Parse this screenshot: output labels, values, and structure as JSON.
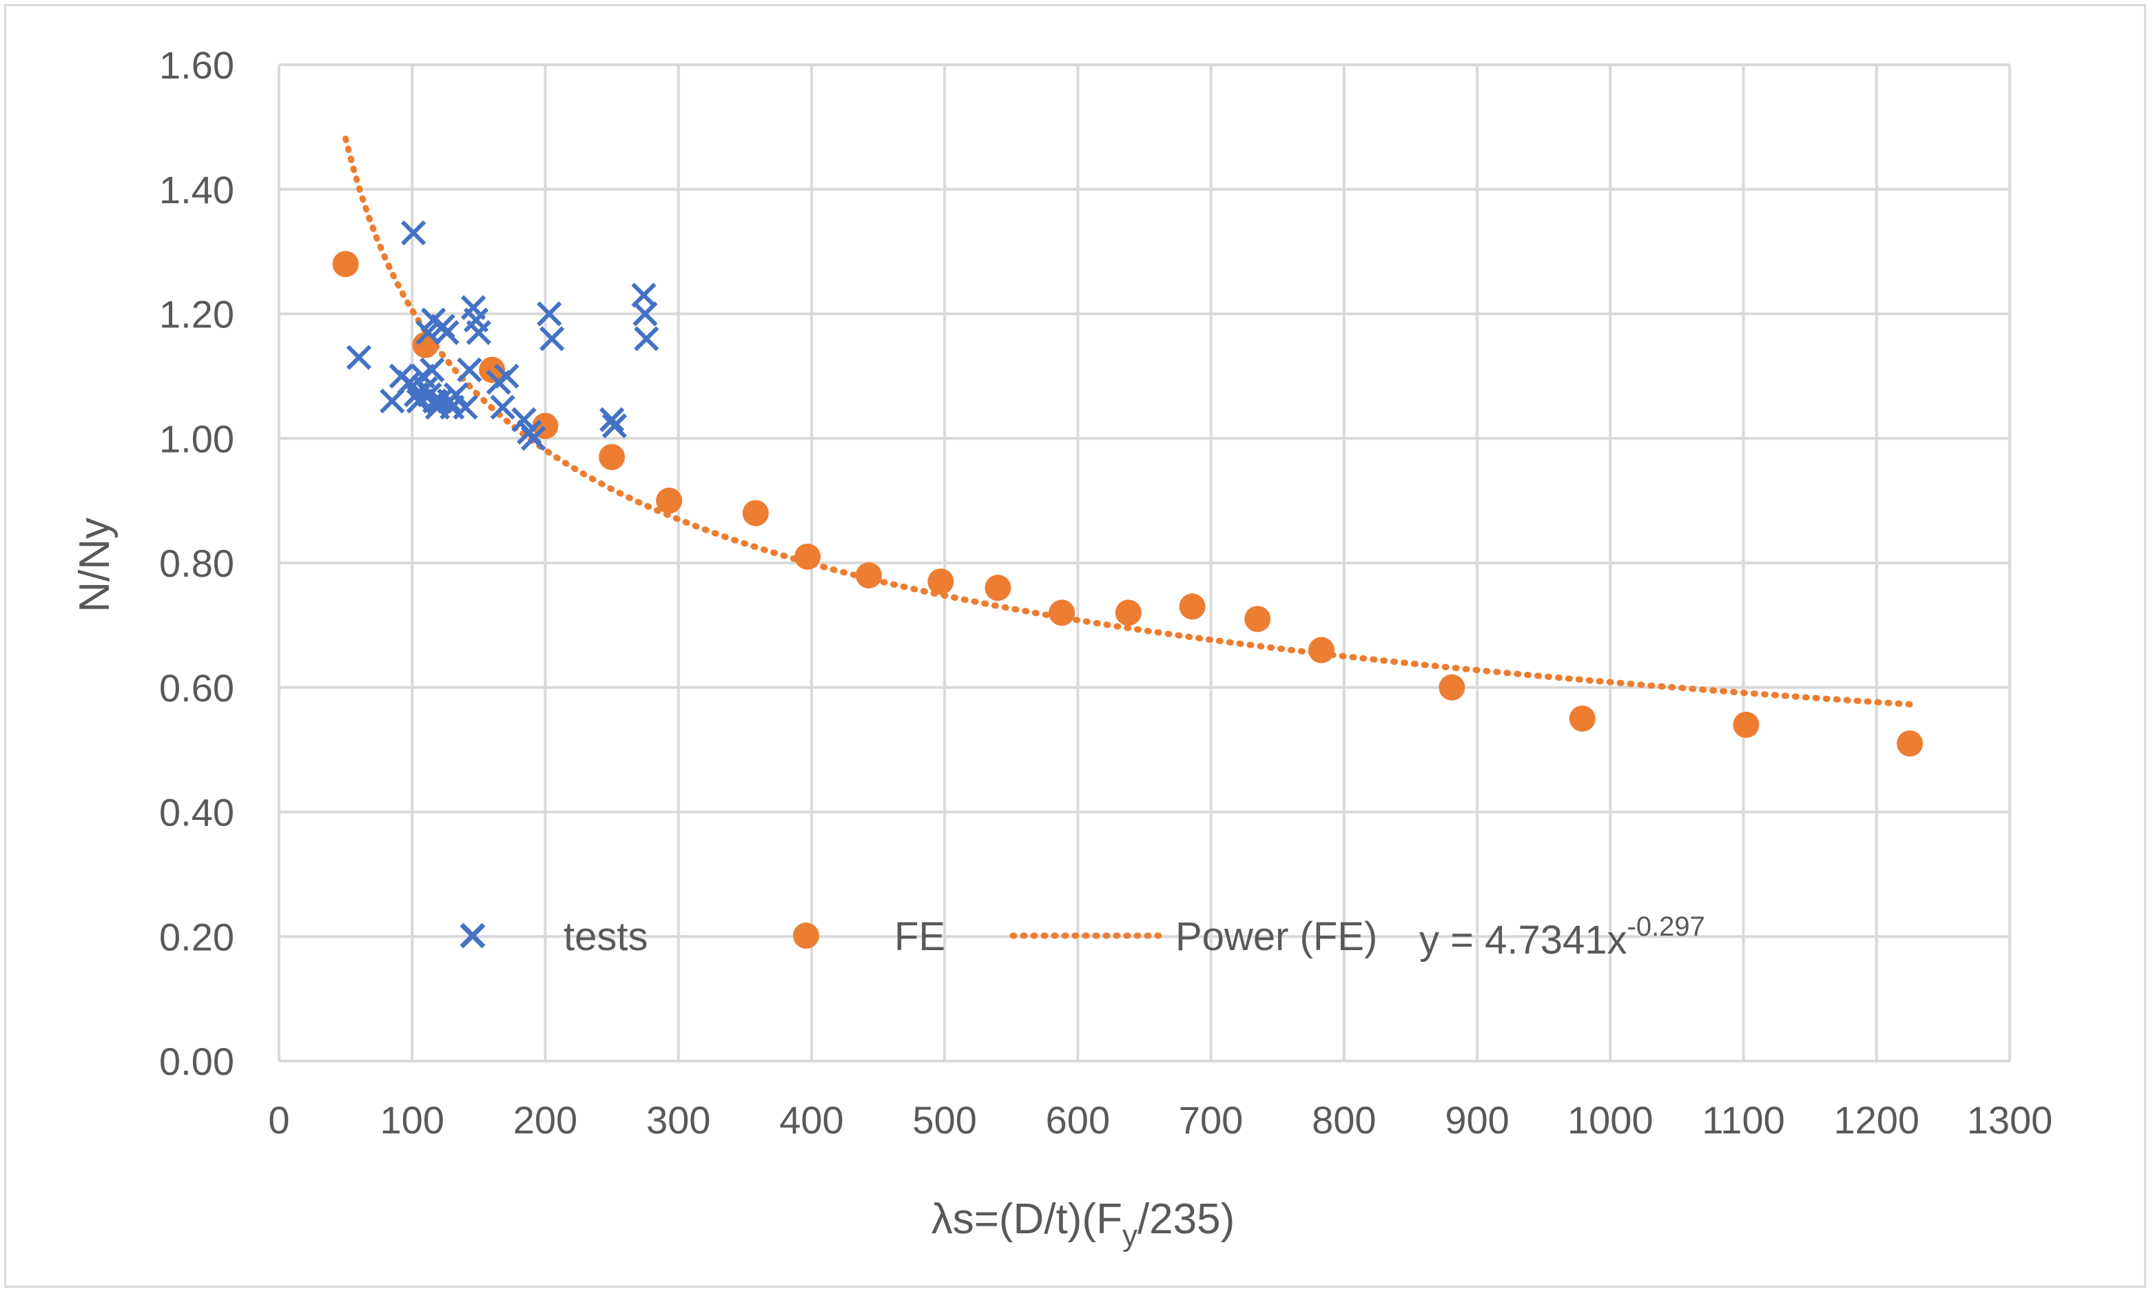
{
  "chart_data": {
    "type": "scatter",
    "title": "",
    "xlabel_parts": {
      "pre": "λs=(D/t)(F",
      "sub": "y",
      "post": "/235)"
    },
    "ylabel": "N/Ny",
    "xlim": [
      0,
      1300
    ],
    "ylim": [
      0,
      1.6
    ],
    "x_ticks": [
      0,
      100,
      200,
      300,
      400,
      500,
      600,
      700,
      800,
      900,
      1000,
      1100,
      1200,
      1300
    ],
    "y_ticks": [
      0,
      0.2,
      0.4,
      0.6,
      0.8,
      1.0,
      1.2,
      1.4,
      1.6
    ],
    "x_tick_labels": [
      "0",
      "100",
      "200",
      "300",
      "400",
      "500",
      "600",
      "700",
      "800",
      "900",
      "1000",
      "1100",
      "1200",
      "1300"
    ],
    "y_tick_labels": [
      "0.00",
      "0.20",
      "0.40",
      "0.60",
      "0.80",
      "1.00",
      "1.20",
      "1.40",
      "1.60"
    ],
    "grid": true,
    "legend_position": "bottom-inside",
    "series": [
      {
        "name": "tests",
        "marker": "x",
        "color": "#4472c4",
        "points": [
          [
            60,
            1.13
          ],
          [
            85,
            1.06
          ],
          [
            92,
            1.1
          ],
          [
            98,
            1.09
          ],
          [
            101,
            1.33
          ],
          [
            103,
            1.07
          ],
          [
            105,
            1.06
          ],
          [
            108,
            1.1
          ],
          [
            110,
            1.08
          ],
          [
            112,
            1.17
          ],
          [
            113,
            1.07
          ],
          [
            115,
            1.11
          ],
          [
            116,
            1.19
          ],
          [
            117,
            1.06
          ],
          [
            119,
            1.05
          ],
          [
            121,
            1.06
          ],
          [
            123,
            1.18
          ],
          [
            126,
            1.17
          ],
          [
            128,
            1.06
          ],
          [
            130,
            1.05
          ],
          [
            133,
            1.07
          ],
          [
            140,
            1.05
          ],
          [
            143,
            1.11
          ],
          [
            146,
            1.21
          ],
          [
            148,
            1.19
          ],
          [
            150,
            1.17
          ],
          [
            165,
            1.09
          ],
          [
            168,
            1.05
          ],
          [
            171,
            1.1
          ],
          [
            184,
            1.03
          ],
          [
            188,
            1.01
          ],
          [
            191,
            1.0
          ],
          [
            203,
            1.2
          ],
          [
            205,
            1.16
          ],
          [
            250,
            1.03
          ],
          [
            252,
            1.02
          ],
          [
            274,
            1.23
          ],
          [
            275,
            1.2
          ],
          [
            276,
            1.16
          ]
        ]
      },
      {
        "name": "FE",
        "marker": "circle",
        "color": "#ed7d31",
        "points": [
          [
            50,
            1.28
          ],
          [
            110,
            1.15
          ],
          [
            160,
            1.11
          ],
          [
            200,
            1.02
          ],
          [
            250,
            0.97
          ],
          [
            293,
            0.9
          ],
          [
            358,
            0.88
          ],
          [
            397,
            0.81
          ],
          [
            443,
            0.78
          ],
          [
            497,
            0.77
          ],
          [
            540,
            0.76
          ],
          [
            588,
            0.72
          ],
          [
            638,
            0.72
          ],
          [
            686,
            0.73
          ],
          [
            735,
            0.71
          ],
          [
            783,
            0.66
          ],
          [
            881,
            0.6
          ],
          [
            979,
            0.55
          ],
          [
            1102,
            0.54
          ],
          [
            1225,
            0.51
          ]
        ]
      },
      {
        "name": "Power (FE)",
        "type": "trendline",
        "style": "dotted",
        "color": "#ed7d31",
        "equation": {
          "pre": "y = 4.7341x",
          "sup": "-0.297"
        },
        "coefficient": 4.7341,
        "exponent": -0.297,
        "x_range": [
          50,
          1225
        ]
      }
    ]
  }
}
